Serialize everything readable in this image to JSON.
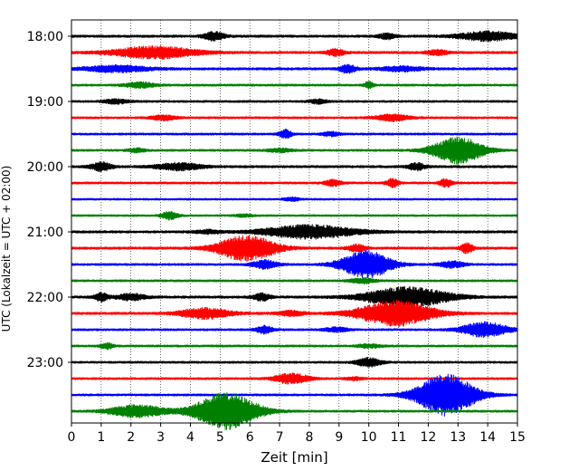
{
  "chart_data": {
    "type": "line",
    "title": "",
    "xlabel": "Zeit  [min]",
    "ylabel": "UTC (Lokalzeit = UTC + 02:00)",
    "xlim": [
      0,
      15
    ],
    "x_ticks": [
      "0",
      "1",
      "2",
      "3",
      "4",
      "5",
      "6",
      "7",
      "8",
      "9",
      "10",
      "11",
      "12",
      "13",
      "14",
      "15"
    ],
    "y_ticks": [
      "18:00",
      "19:00",
      "20:00",
      "21:00",
      "22:00",
      "23:00"
    ],
    "grid": "vertical dotted lines at each minute",
    "color_cycle": [
      "#000000",
      "#ff0000",
      "#0000ff",
      "#008000"
    ],
    "rows_per_hour": 4,
    "row_minutes": 15,
    "traces": [
      {
        "start": "18:00",
        "noise": 0.22,
        "events": [
          [
            4.8,
            0.25,
            0.6
          ],
          [
            10.6,
            0.2,
            0.4
          ],
          [
            14.0,
            0.7,
            0.65
          ]
        ]
      },
      {
        "start": "18:15",
        "noise": 0.22,
        "events": [
          [
            2.8,
            1.0,
            0.85
          ],
          [
            8.9,
            0.2,
            0.5
          ],
          [
            12.3,
            0.25,
            0.35
          ]
        ]
      },
      {
        "start": "18:30",
        "noise": 0.22,
        "events": [
          [
            1.5,
            0.8,
            0.45
          ],
          [
            9.3,
            0.2,
            0.55
          ],
          [
            11.1,
            0.5,
            0.35
          ]
        ]
      },
      {
        "start": "18:45",
        "noise": 0.2,
        "events": [
          [
            2.3,
            0.35,
            0.4
          ],
          [
            10.0,
            0.1,
            0.5
          ]
        ]
      },
      {
        "start": "19:00",
        "noise": 0.2,
        "events": [
          [
            1.5,
            0.3,
            0.3
          ],
          [
            8.3,
            0.2,
            0.3
          ]
        ]
      },
      {
        "start": "19:15",
        "noise": 0.2,
        "events": [
          [
            3.1,
            0.3,
            0.35
          ],
          [
            10.8,
            0.4,
            0.45
          ]
        ]
      },
      {
        "start": "19:30",
        "noise": 0.2,
        "events": [
          [
            7.2,
            0.15,
            0.6
          ],
          [
            8.7,
            0.2,
            0.3
          ]
        ]
      },
      {
        "start": "19:45",
        "noise": 0.2,
        "events": [
          [
            2.2,
            0.2,
            0.3
          ],
          [
            7.0,
            0.3,
            0.25
          ],
          [
            13.0,
            0.6,
            1.9
          ]
        ]
      },
      {
        "start": "20:00",
        "noise": 0.22,
        "events": [
          [
            1.0,
            0.25,
            0.6
          ],
          [
            3.6,
            0.55,
            0.5
          ],
          [
            11.6,
            0.2,
            0.5
          ]
        ]
      },
      {
        "start": "20:15",
        "noise": 0.2,
        "events": [
          [
            8.8,
            0.2,
            0.45
          ],
          [
            10.8,
            0.15,
            0.6
          ],
          [
            12.6,
            0.15,
            0.6
          ]
        ]
      },
      {
        "start": "20:30",
        "noise": 0.18,
        "events": [
          [
            7.4,
            0.2,
            0.25
          ]
        ]
      },
      {
        "start": "20:45",
        "noise": 0.18,
        "events": [
          [
            3.3,
            0.2,
            0.55
          ],
          [
            5.8,
            0.2,
            0.2
          ]
        ]
      },
      {
        "start": "21:00",
        "noise": 0.22,
        "events": [
          [
            8.0,
            1.1,
            0.95
          ],
          [
            4.6,
            0.3,
            0.25
          ]
        ]
      },
      {
        "start": "21:15",
        "noise": 0.22,
        "events": [
          [
            5.9,
            0.7,
            1.8
          ],
          [
            9.6,
            0.2,
            0.5
          ],
          [
            13.3,
            0.15,
            0.7
          ]
        ]
      },
      {
        "start": "21:30",
        "noise": 0.2,
        "events": [
          [
            6.5,
            0.3,
            0.6
          ],
          [
            9.9,
            0.6,
            2.0
          ],
          [
            12.8,
            0.3,
            0.45
          ]
        ]
      },
      {
        "start": "21:45",
        "noise": 0.2,
        "events": [
          [
            9.8,
            0.3,
            0.35
          ]
        ]
      },
      {
        "start": "22:00",
        "noise": 0.22,
        "events": [
          [
            1.0,
            0.15,
            0.6
          ],
          [
            2.0,
            0.35,
            0.45
          ],
          [
            6.4,
            0.2,
            0.5
          ],
          [
            11.3,
            1.0,
            1.4
          ]
        ]
      },
      {
        "start": "22:15",
        "noise": 0.22,
        "events": [
          [
            4.5,
            0.6,
            0.75
          ],
          [
            7.4,
            0.3,
            0.35
          ],
          [
            10.9,
            0.9,
            1.8
          ]
        ]
      },
      {
        "start": "22:30",
        "noise": 0.2,
        "events": [
          [
            6.5,
            0.2,
            0.55
          ],
          [
            8.9,
            0.3,
            0.3
          ],
          [
            13.9,
            0.55,
            1.05
          ]
        ]
      },
      {
        "start": "22:45",
        "noise": 0.2,
        "events": [
          [
            1.2,
            0.15,
            0.4
          ],
          [
            10.0,
            0.3,
            0.25
          ]
        ]
      },
      {
        "start": "23:00",
        "noise": 0.2,
        "events": [
          [
            10.0,
            0.3,
            0.6
          ]
        ]
      },
      {
        "start": "23:15",
        "noise": 0.2,
        "events": [
          [
            7.4,
            0.4,
            0.75
          ],
          [
            9.5,
            0.2,
            0.2
          ]
        ]
      },
      {
        "start": "23:30",
        "noise": 0.2,
        "events": [
          [
            12.6,
            0.7,
            3.0
          ]
        ]
      },
      {
        "start": "23:45",
        "noise": 0.2,
        "events": [
          [
            2.2,
            0.65,
            0.9
          ],
          [
            5.2,
            0.75,
            2.6
          ]
        ]
      }
    ]
  }
}
